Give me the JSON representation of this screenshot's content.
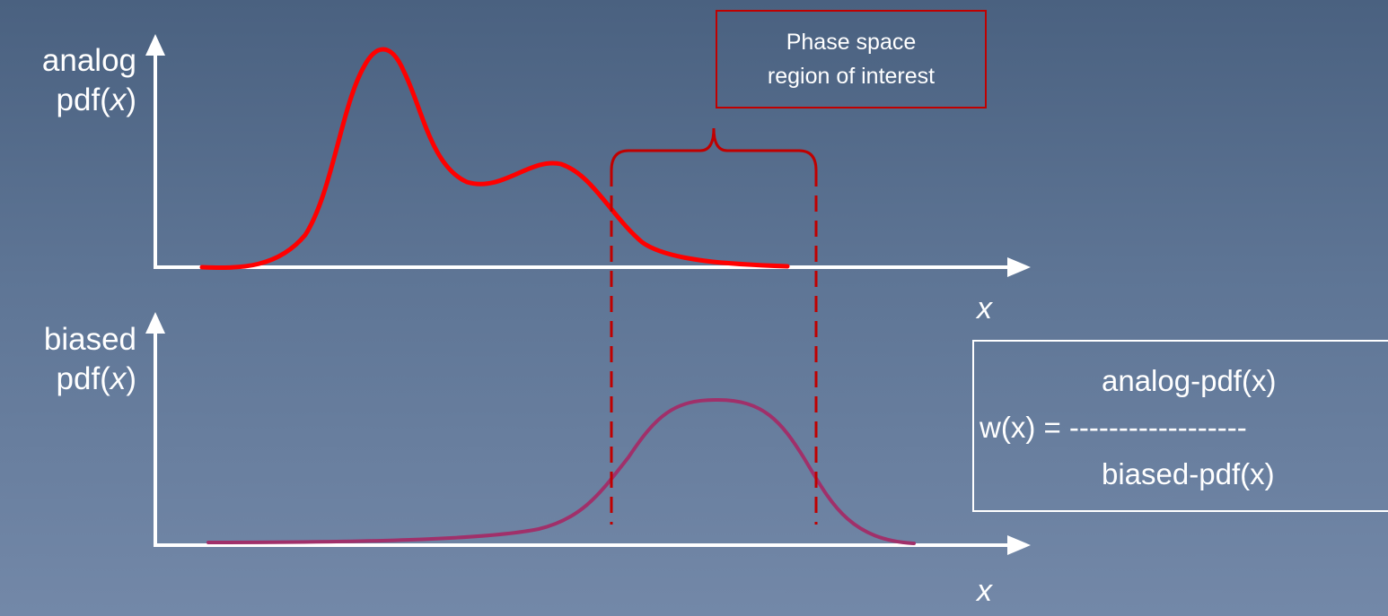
{
  "top_plot": {
    "y_label_line1": "analog",
    "y_label_line2_prefix": "pdf(",
    "y_label_line2_var": "x",
    "y_label_line2_suffix": ")",
    "x_label": "x",
    "curve_color": "#ff0000"
  },
  "bottom_plot": {
    "y_label_line1": "biased",
    "y_label_line2_prefix": "pdf(",
    "y_label_line2_var": "x",
    "y_label_line2_suffix": ")",
    "x_label": "x",
    "curve_color": "#a0306a"
  },
  "region_box": {
    "line1": "Phase space",
    "line2": "region of interest",
    "border_color": "#c00000"
  },
  "formula": {
    "numerator": "analog-pdf(x)",
    "lhs": "w(x) = ------------------",
    "denominator": "biased-pdf(x)"
  },
  "colors": {
    "background_top": "#4a6180",
    "background_bottom": "#7388a8",
    "axis": "#ffffff",
    "dashed_lines": "#c00000"
  }
}
